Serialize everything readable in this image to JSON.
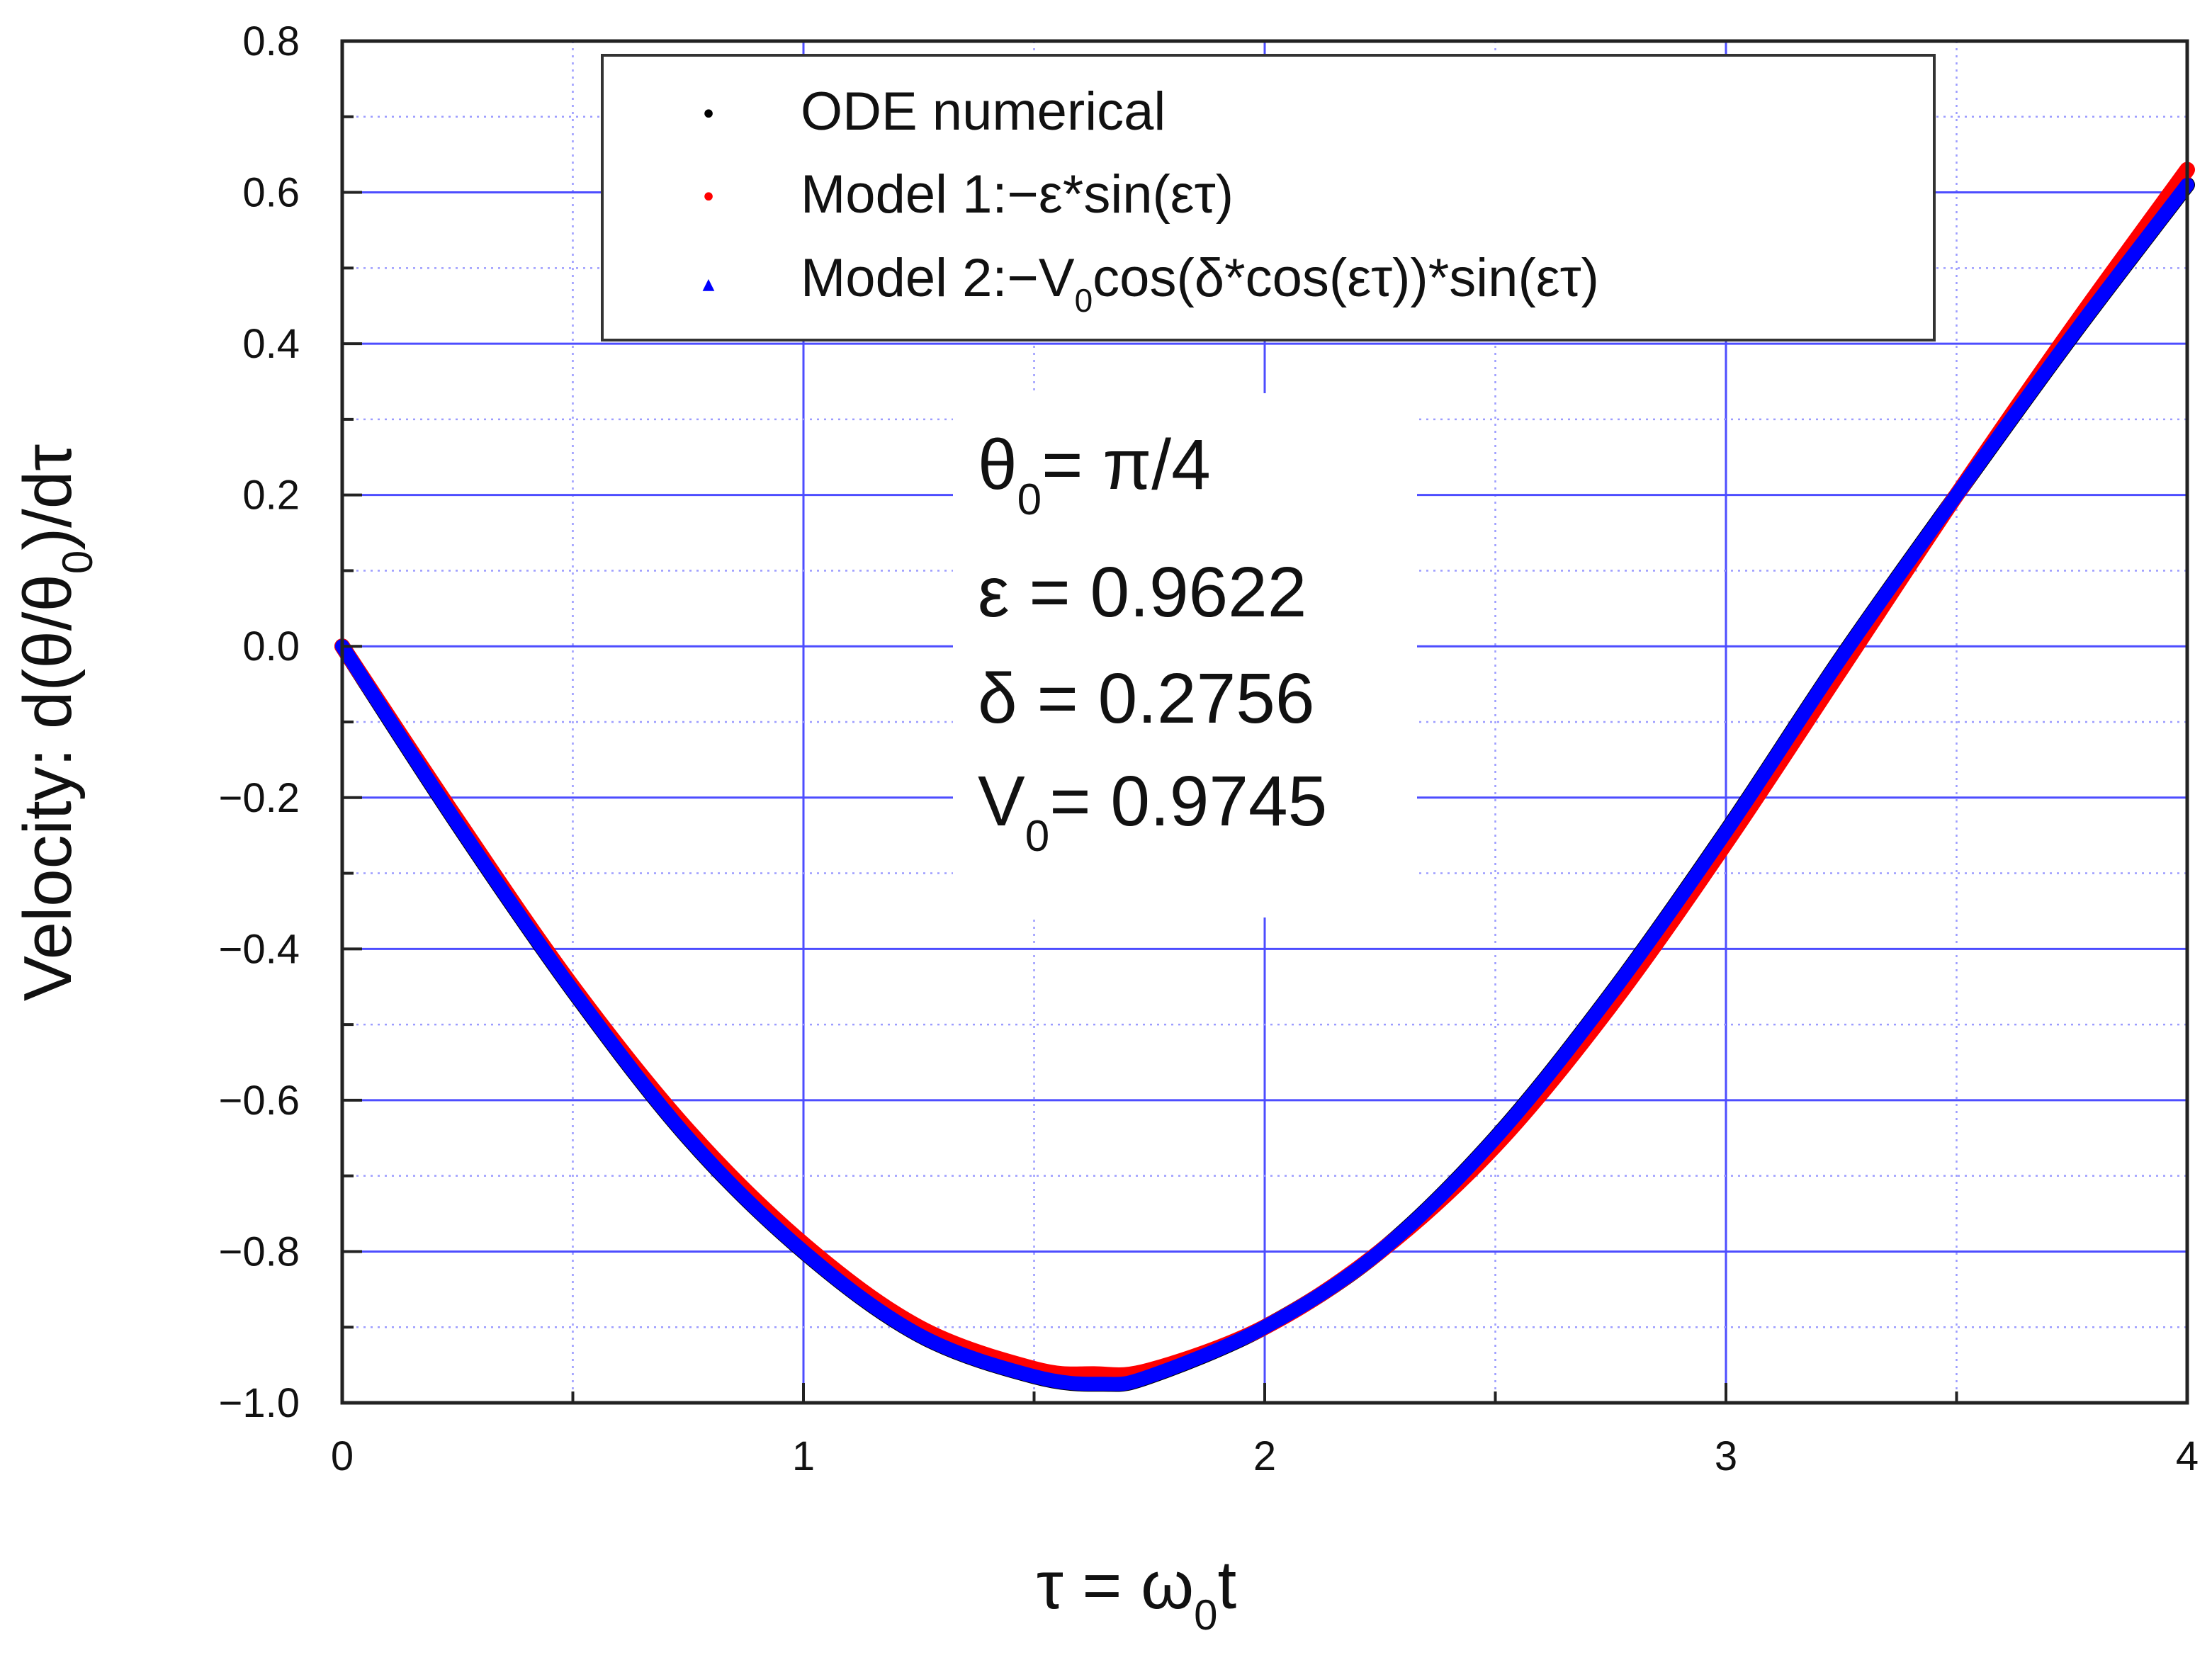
{
  "chart_data": {
    "type": "line",
    "title": "",
    "xlabel": {
      "main": "τ = ω",
      "sub": "0",
      "tail": "t"
    },
    "ylabel": {
      "main": "Velocity: d(θ/θ",
      "sub": "0",
      "tail": ")/dτ"
    },
    "xlim": [
      0,
      4
    ],
    "ylim": [
      -1.0,
      0.8
    ],
    "x_ticks": [
      "0",
      "1",
      "2",
      "3",
      "4"
    ],
    "y_ticks": [
      "0.8",
      "0.6",
      "0.4",
      "0.2",
      "0.0",
      "−0.2",
      "−0.4",
      "−0.6",
      "−0.8",
      "−1.0"
    ],
    "grid": true,
    "legend_placement": "top-center",
    "legend": [
      {
        "marker": "•",
        "color": "#000000",
        "text_main": "ODE  numerical",
        "text_sub": "",
        "text_tail": ""
      },
      {
        "marker": "•",
        "color": "#ff0000",
        "text_main": "Model 1:−ε*sin(ετ)",
        "text_sub": "",
        "text_tail": ""
      },
      {
        "marker": "▲",
        "color": "#0000ff",
        "text_main": "Model 2:−V",
        "text_sub": "0",
        "text_tail": "cos(δ*cos(ετ))*sin(ετ)"
      }
    ],
    "annotations": [
      {
        "main": "θ",
        "sub": "0",
        "tail": "= π/4"
      },
      {
        "main": "ε = 0.9622",
        "sub": "",
        "tail": ""
      },
      {
        "main": "δ = 0.2756",
        "sub": "",
        "tail": ""
      },
      {
        "main": "V",
        "sub": "0",
        "tail": "= 0.9745"
      }
    ],
    "series": [
      {
        "name": "ODE  numerical",
        "color": "#000000",
        "x": [
          0,
          0.25,
          0.5,
          0.75,
          1.0,
          1.25,
          1.5,
          1.65,
          1.75,
          2.0,
          2.25,
          2.5,
          2.75,
          3.0,
          3.25,
          3.5,
          3.75,
          4.0
        ],
        "y": [
          0,
          -0.235,
          -0.455,
          -0.65,
          -0.8,
          -0.91,
          -0.965,
          -0.975,
          -0.965,
          -0.9,
          -0.8,
          -0.65,
          -0.46,
          -0.245,
          -0.015,
          0.2,
          0.41,
          0.61
        ]
      },
      {
        "name": "Model 1:−ε*sin(ετ)",
        "color": "#ff0000",
        "x": [
          0,
          0.25,
          0.5,
          0.75,
          1.0,
          1.25,
          1.5,
          1.63,
          1.75,
          2.0,
          2.25,
          2.5,
          2.75,
          3.0,
          3.25,
          3.5,
          3.75,
          4.0
        ],
        "y": [
          0,
          -0.23,
          -0.45,
          -0.64,
          -0.79,
          -0.9,
          -0.955,
          -0.962,
          -0.957,
          -0.9,
          -0.8,
          -0.66,
          -0.475,
          -0.26,
          -0.03,
          0.2,
          0.42,
          0.63
        ]
      },
      {
        "name": "Model 2:−V0cos(δ*cos(ετ))*sin(ετ)",
        "color": "#0000ff",
        "x": [
          0,
          0.25,
          0.5,
          0.75,
          1.0,
          1.25,
          1.5,
          1.65,
          1.75,
          2.0,
          2.25,
          2.5,
          2.75,
          3.0,
          3.25,
          3.5,
          3.75,
          4.0
        ],
        "y": [
          0,
          -0.235,
          -0.455,
          -0.65,
          -0.8,
          -0.91,
          -0.965,
          -0.975,
          -0.965,
          -0.9,
          -0.8,
          -0.65,
          -0.46,
          -0.245,
          -0.015,
          0.2,
          0.41,
          0.61
        ]
      }
    ]
  }
}
